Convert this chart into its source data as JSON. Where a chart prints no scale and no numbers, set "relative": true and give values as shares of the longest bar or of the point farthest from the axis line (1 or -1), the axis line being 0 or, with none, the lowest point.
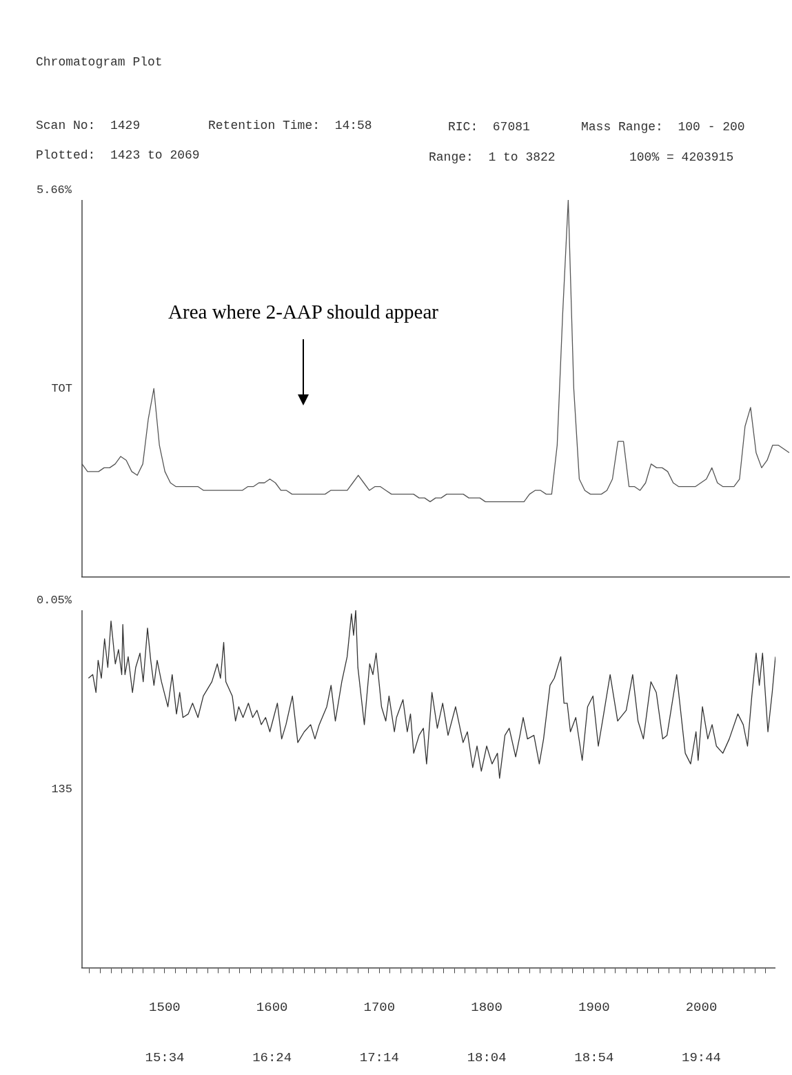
{
  "chart_data": [
    {
      "type": "line",
      "title": "Chromatogram Plot",
      "ylabel": "TOT",
      "relative": true,
      "marker": "none",
      "color": "#555555",
      "tick_labels": false,
      "annotations": [
        "5.66%",
        "Scan No:  1429",
        "Retention Time:  14:58",
        "RIC:  67081",
        "Mass Range:  100 - 200",
        "Plotted:  1423 to 2069",
        "Range:  1 to 3822",
        "100% = 4203915",
        "Area where 2-AAP should appear"
      ],
      "categories": [
        null,
        null,
        null,
        null,
        null,
        null,
        null,
        null,
        null,
        null,
        null,
        null,
        null,
        null,
        null,
        null,
        null,
        null,
        null,
        null,
        null,
        null,
        null,
        null,
        null,
        null,
        null,
        null,
        null,
        null,
        null,
        null,
        null,
        null,
        null,
        null,
        null,
        null,
        null,
        null,
        null,
        null,
        null,
        null,
        null,
        null,
        null,
        null,
        null,
        null,
        null,
        null,
        null,
        null,
        null,
        null,
        null,
        null,
        null,
        null,
        null,
        null,
        null,
        null,
        null,
        null,
        null,
        null,
        null,
        null,
        null,
        null,
        null,
        null,
        null,
        null,
        null,
        null,
        null,
        null,
        null,
        null,
        null,
        null,
        null,
        null,
        null,
        null,
        null,
        null,
        null,
        null,
        null,
        null,
        null,
        null,
        null,
        null,
        null,
        null,
        null,
        null,
        null,
        null,
        null,
        null,
        null,
        null,
        null,
        null,
        null,
        null,
        null,
        null,
        null,
        null,
        null,
        null,
        null,
        null,
        null,
        null,
        null,
        null,
        null,
        null,
        null,
        null,
        null
      ],
      "values": [
        0.3,
        0.28,
        0.28,
        0.28,
        0.29,
        0.29,
        0.3,
        0.32,
        0.31,
        0.28,
        0.27,
        0.3,
        0.42,
        0.5,
        0.35,
        0.28,
        0.25,
        0.24,
        0.24,
        0.24,
        0.24,
        0.24,
        0.23,
        0.23,
        0.23,
        0.23,
        0.23,
        0.23,
        0.23,
        0.23,
        0.24,
        0.24,
        0.25,
        0.25,
        0.26,
        0.25,
        0.23,
        0.23,
        0.22,
        0.22,
        0.22,
        0.22,
        0.22,
        0.22,
        0.22,
        0.23,
        0.23,
        0.23,
        0.23,
        0.25,
        0.27,
        0.25,
        0.23,
        0.24,
        0.24,
        0.23,
        0.22,
        0.22,
        0.22,
        0.22,
        0.22,
        0.21,
        0.21,
        0.2,
        0.21,
        0.21,
        0.22,
        0.22,
        0.22,
        0.22,
        0.21,
        0.21,
        0.21,
        0.2,
        0.2,
        0.2,
        0.2,
        0.2,
        0.2,
        0.2,
        0.2,
        0.22,
        0.23,
        0.23,
        0.22,
        0.22,
        0.35,
        0.7,
        1,
        0.5,
        0.26,
        0.23,
        0.22,
        0.22,
        0.22,
        0.23,
        0.26,
        0.36,
        0.36,
        0.24,
        0.24,
        0.23,
        0.25,
        0.3,
        0.29,
        0.29,
        0.28,
        0.25,
        0.24,
        0.24,
        0.24,
        0.24,
        0.25,
        0.26,
        0.29,
        0.25,
        0.24,
        0.24,
        0.24,
        0.26,
        0.4,
        0.45,
        0.33,
        0.29,
        0.31,
        0.35,
        0.35,
        0.34,
        0.33
      ]
    },
    {
      "type": "line",
      "ylabel": "135",
      "relative": true,
      "marker": "none",
      "color": "#333333",
      "tick_labels": "x",
      "annotations": [
        "0.05%"
      ],
      "xlim": [
        1423,
        2069
      ],
      "xticks": [
        {
          "value": 1430,
          "label": null
        },
        {
          "value": 1440,
          "label": null
        },
        {
          "value": 1450,
          "label": null
        },
        {
          "value": 1460,
          "label": null
        },
        {
          "value": 1470,
          "label": null
        },
        {
          "value": 1480,
          "label": null
        },
        {
          "value": 1490,
          "label": null
        },
        1500,
        {
          "value": 1510,
          "label": null
        },
        {
          "value": 1520,
          "label": null
        },
        {
          "value": 1530,
          "label": null
        },
        {
          "value": 1540,
          "label": null
        },
        {
          "value": 1550,
          "label": null
        },
        {
          "value": 1560,
          "label": null
        },
        {
          "value": 1570,
          "label": null
        },
        {
          "value": 1580,
          "label": null
        },
        {
          "value": 1590,
          "label": null
        },
        1600,
        {
          "value": 1610,
          "label": null
        },
        {
          "value": 1620,
          "label": null
        },
        {
          "value": 1630,
          "label": null
        },
        {
          "value": 1640,
          "label": null
        },
        {
          "value": 1650,
          "label": null
        },
        {
          "value": 1660,
          "label": null
        },
        {
          "value": 1670,
          "label": null
        },
        {
          "value": 1680,
          "label": null
        },
        {
          "value": 1690,
          "label": null
        },
        1700,
        {
          "value": 1710,
          "label": null
        },
        {
          "value": 1720,
          "label": null
        },
        {
          "value": 1730,
          "label": null
        },
        {
          "value": 1740,
          "label": null
        },
        {
          "value": 1750,
          "label": null
        },
        {
          "value": 1760,
          "label": null
        },
        {
          "value": 1770,
          "label": null
        },
        {
          "value": 1780,
          "label": null
        },
        {
          "value": 1790,
          "label": null
        },
        1800,
        {
          "value": 1810,
          "label": null
        },
        {
          "value": 1820,
          "label": null
        },
        {
          "value": 1830,
          "label": null
        },
        {
          "value": 1840,
          "label": null
        },
        {
          "value": 1850,
          "label": null
        },
        {
          "value": 1860,
          "label": null
        },
        {
          "value": 1870,
          "label": null
        },
        {
          "value": 1880,
          "label": null
        },
        {
          "value": 1890,
          "label": null
        },
        1900,
        {
          "value": 1910,
          "label": null
        },
        {
          "value": 1920,
          "label": null
        },
        {
          "value": 1930,
          "label": null
        },
        {
          "value": 1940,
          "label": null
        },
        {
          "value": 1950,
          "label": null
        },
        {
          "value": 1960,
          "label": null
        },
        {
          "value": 1970,
          "label": null
        },
        {
          "value": 1980,
          "label": null
        },
        {
          "value": 1990,
          "label": null
        },
        2000,
        {
          "value": 2010,
          "label": null
        },
        {
          "value": 2020,
          "label": null
        },
        {
          "value": 2030,
          "label": null
        },
        {
          "value": 2040,
          "label": null
        },
        {
          "value": 2050,
          "label": null
        },
        {
          "value": 2060,
          "label": null
        }
      ],
      "x2lim": [
        14.925,
        20.308
      ],
      "x2ticks": [
        {
          "value": 15.567,
          "label": "15:34"
        },
        {
          "value": 16.4,
          "label": "16:24"
        },
        {
          "value": 17.233,
          "label": "17:14"
        },
        {
          "value": 18.067,
          "label": "18:04"
        },
        {
          "value": 18.9,
          "label": "18:54"
        },
        {
          "value": 19.733,
          "label": "19:44"
        }
      ],
      "x": [
        1429,
        1433,
        1436,
        1438,
        1441,
        1444,
        1447,
        1450,
        1454,
        1457,
        1460,
        1461,
        1463,
        1466,
        1470,
        1473,
        1477,
        1480,
        1484,
        1487,
        1490,
        1493,
        1497,
        1503,
        1507,
        1511,
        1514,
        1517,
        1522,
        1526,
        1531,
        1536,
        1544,
        1549,
        1552,
        1555,
        1557,
        1563,
        1566,
        1569,
        1573,
        1578,
        1582,
        1586,
        1590,
        1594,
        1598,
        1605,
        1609,
        1613,
        1619,
        1624,
        1630,
        1636,
        1640,
        1644,
        1651,
        1655,
        1659,
        1665,
        1670,
        1674,
        1676,
        1678,
        1680,
        1686,
        1691,
        1694,
        1697,
        1702,
        1706,
        1709,
        1714,
        1716,
        1722,
        1726,
        1729,
        1732,
        1737,
        1741,
        1744,
        1749,
        1754,
        1759,
        1764,
        1771,
        1778,
        1782,
        1787,
        1791,
        1795,
        1800,
        1805,
        1810,
        1812,
        1817,
        1821,
        1827,
        1831,
        1834,
        1838,
        1844,
        1849,
        1853,
        1859,
        1863,
        1869,
        1872,
        1875,
        1878,
        1883,
        1889,
        1894,
        1899,
        1904,
        1909,
        1915,
        1922,
        1930,
        1936,
        1941,
        1946,
        1953,
        1958,
        1964,
        1968,
        1977,
        1985,
        1990,
        1995,
        1997,
        2001,
        2006,
        2010,
        2014,
        2020,
        2026,
        2034,
        2039,
        2043,
        2047,
        2051,
        2054,
        2057,
        2062,
        2066,
        2069
      ],
      "values": [
        0.81,
        0.82,
        0.77,
        0.86,
        0.81,
        0.92,
        0.84,
        0.97,
        0.85,
        0.89,
        0.82,
        0.96,
        0.82,
        0.87,
        0.77,
        0.84,
        0.88,
        0.8,
        0.95,
        0.86,
        0.79,
        0.86,
        0.8,
        0.73,
        0.82,
        0.71,
        0.77,
        0.7,
        0.71,
        0.74,
        0.7,
        0.76,
        0.8,
        0.85,
        0.81,
        0.91,
        0.8,
        0.76,
        0.69,
        0.73,
        0.7,
        0.74,
        0.7,
        0.72,
        0.68,
        0.7,
        0.66,
        0.74,
        0.64,
        0.68,
        0.76,
        0.63,
        0.66,
        0.68,
        0.64,
        0.68,
        0.73,
        0.79,
        0.69,
        0.8,
        0.87,
        0.99,
        0.93,
        1,
        0.84,
        0.68,
        0.85,
        0.82,
        0.88,
        0.73,
        0.69,
        0.76,
        0.66,
        0.7,
        0.75,
        0.66,
        0.71,
        0.6,
        0.65,
        0.67,
        0.57,
        0.77,
        0.67,
        0.74,
        0.65,
        0.73,
        0.63,
        0.66,
        0.56,
        0.62,
        0.55,
        0.62,
        0.57,
        0.6,
        0.53,
        0.65,
        0.67,
        0.59,
        0.65,
        0.7,
        0.64,
        0.65,
        0.57,
        0.64,
        0.79,
        0.81,
        0.87,
        0.74,
        0.74,
        0.66,
        0.7,
        0.58,
        0.73,
        0.76,
        0.62,
        0.71,
        0.82,
        0.69,
        0.72,
        0.82,
        0.69,
        0.64,
        0.8,
        0.77,
        0.64,
        0.65,
        0.82,
        0.6,
        0.57,
        0.66,
        0.58,
        0.73,
        0.64,
        0.68,
        0.62,
        0.6,
        0.64,
        0.71,
        0.68,
        0.62,
        0.76,
        0.88,
        0.79,
        0.88,
        0.66,
        0.77,
        0.87
      ]
    }
  ]
}
